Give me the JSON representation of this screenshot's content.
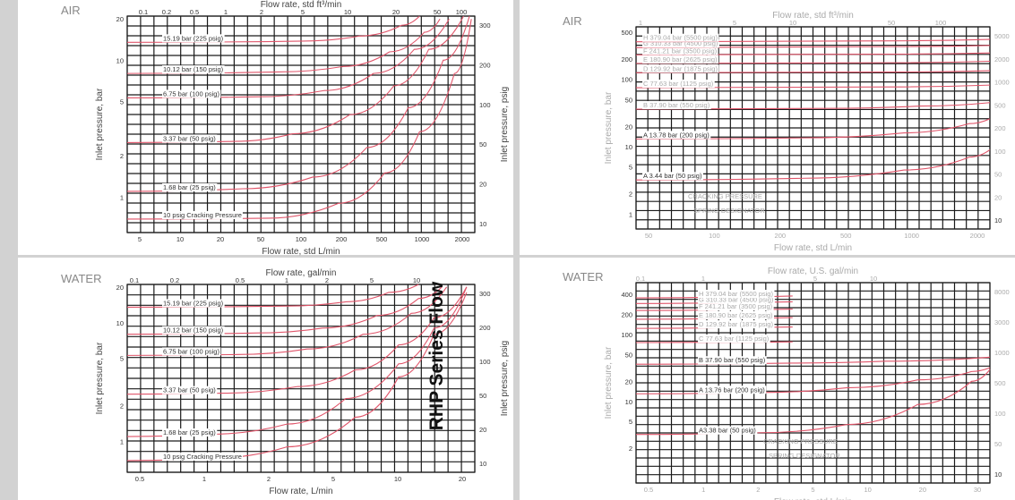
{
  "title": "RHP Series Flow",
  "chart_data": [
    {
      "type": "line",
      "corner_label": "AIR",
      "top_axis_label": "Flow rate, std ft³/min",
      "xlabel": "Flow rate, std L/min",
      "ylabel": "Inlet pressure, bar",
      "right_axis_label": "Inlet pressure, psig",
      "xlim": [
        3,
        3000
      ],
      "ylim": [
        0.55,
        21
      ],
      "x_log": true,
      "y_log": true,
      "top_ticks": [
        "0.1",
        "0.2",
        "0.5",
        "1",
        "2",
        "5",
        "10",
        "20",
        "50",
        "100"
      ],
      "bottom_ticks": [
        "5",
        "10",
        "20",
        "50",
        "100",
        "200",
        "500",
        "1000",
        "2000"
      ],
      "left_ticks": [
        "1",
        "2",
        "5",
        "10",
        "20"
      ],
      "right_ticks": [
        "10",
        "20",
        "50",
        "100",
        "200",
        "300"
      ],
      "series": [
        {
          "name": "10 psig Cracking Pressure",
          "x": [
            3,
            50,
            200,
            500,
            1000,
            2000,
            2800
          ],
          "y": [
            0.69,
            0.7,
            0.9,
            1.5,
            3,
            8,
            20
          ]
        },
        {
          "name": "1.68 bar (25 psig)",
          "x": [
            3,
            30,
            120,
            350,
            800,
            1600,
            2700
          ],
          "y": [
            1.1,
            1.15,
            1.4,
            2.3,
            4.5,
            10,
            21
          ]
        },
        {
          "name": "3.37 bar (50 psig)",
          "x": [
            3,
            25,
            80,
            250,
            600,
            1200,
            2400
          ],
          "y": [
            2.5,
            2.55,
            2.9,
            4.0,
            6.5,
            12,
            21
          ]
        },
        {
          "name": "6.75 bar (100 psig)",
          "x": [
            3,
            40,
            150,
            400,
            900,
            1800
          ],
          "y": [
            5.3,
            5.4,
            6.0,
            8.0,
            12,
            20
          ]
        },
        {
          "name": "10.12 bar (150 psig)",
          "x": [
            3,
            60,
            220,
            550,
            1100,
            1500
          ],
          "y": [
            8.0,
            8.2,
            9.0,
            11.5,
            16,
            20
          ]
        },
        {
          "name": "15.19 bar (225 psig)",
          "x": [
            3,
            100,
            300,
            700,
            1000
          ],
          "y": [
            13.5,
            13.8,
            15,
            18,
            21
          ]
        }
      ]
    },
    {
      "type": "line",
      "corner_label": "WATER",
      "top_axis_label": "Flow rate, gal/min",
      "xlabel": "Flow rate, L/min",
      "ylabel": "Inlet pressure, bar",
      "right_axis_label": "Inlet pressure, psig",
      "xlim": [
        0.3,
        45
      ],
      "ylim": [
        0.55,
        21
      ],
      "x_log": true,
      "y_log": true,
      "top_ticks": [
        "0.1",
        "0.2",
        "0.5",
        "1",
        "2",
        "5",
        "10"
      ],
      "bottom_ticks": [
        "0.5",
        "1",
        "2",
        "5",
        "10",
        "20"
      ],
      "left_ticks": [
        "1",
        "2",
        "5",
        "10",
        "20"
      ],
      "right_ticks": [
        "10",
        "20",
        "50",
        "100",
        "200",
        "300"
      ],
      "series": [
        {
          "name": "10 psig Cracking Pressure",
          "x": [
            0.3,
            1,
            3,
            8,
            15,
            25,
            40
          ],
          "y": [
            0.69,
            0.72,
            0.9,
            1.6,
            3.5,
            8,
            18
          ]
        },
        {
          "name": "1.68 bar (25 psig)",
          "x": [
            0.3,
            1,
            3,
            7,
            15,
            25,
            40
          ],
          "y": [
            1.1,
            1.15,
            1.4,
            2.3,
            4.5,
            9,
            20
          ]
        },
        {
          "name": "3.37 bar (50 psig)",
          "x": [
            0.3,
            1.2,
            3.5,
            8,
            15,
            25,
            40
          ],
          "y": [
            2.5,
            2.55,
            2.9,
            4.0,
            6.5,
            11,
            20
          ]
        },
        {
          "name": "6.75 bar (100 psig)",
          "x": [
            0.3,
            1.5,
            4,
            9,
            18,
            30
          ],
          "y": [
            5.3,
            5.4,
            6.0,
            8.0,
            12,
            20
          ]
        },
        {
          "name": "10.12 bar (150 psig)",
          "x": [
            0.3,
            2,
            5,
            11,
            20,
            28
          ],
          "y": [
            8.0,
            8.2,
            9.0,
            11.5,
            16,
            20
          ]
        },
        {
          "name": "15.19 bar (225 psig)",
          "x": [
            0.3,
            3,
            7,
            13,
            20
          ],
          "y": [
            13.5,
            13.8,
            15,
            18,
            21
          ]
        }
      ]
    },
    {
      "type": "line",
      "corner_label": "AIR",
      "top_axis_label": "Flow rate, std ft³/min",
      "xlabel": "Flow rate, std L/min",
      "ylabel": "Inlet pressure, bar",
      "right_axis_label": "Inlet pressure, psig",
      "xlim": [
        28,
        4000
      ],
      "ylim": [
        0.6,
        600
      ],
      "x_log": true,
      "y_log": true,
      "top_ticks": [
        "1",
        "5",
        "10",
        "50",
        "100"
      ],
      "bottom_ticks": [
        "50",
        "100",
        "200",
        "500",
        "1000",
        "2000"
      ],
      "left_ticks": [
        "1",
        "2",
        "5",
        "10",
        "20",
        "50",
        "100",
        "200",
        "500"
      ],
      "right_ticks": [
        "10",
        "20",
        "50",
        "100",
        "200",
        "500",
        "1000",
        "2000",
        "5000"
      ],
      "series": [
        {
          "name": "A 3.44 bar (50 psig)",
          "x": [
            28,
            300,
            1200,
            3000,
            4000
          ],
          "y": [
            3.2,
            3.4,
            4.5,
            7,
            9
          ]
        },
        {
          "name": "A 13.78 bar (200 psig)",
          "x": [
            28,
            300,
            1200,
            3000,
            4000
          ],
          "y": [
            13,
            13.5,
            16,
            22,
            26
          ]
        },
        {
          "name": "B 37.90 bar (550 psig)",
          "x": [
            28,
            400,
            1500,
            4000
          ],
          "y": [
            36,
            37,
            40,
            45
          ]
        },
        {
          "name": "C 77.63 bar (1125 psig)",
          "x": [
            28,
            1000,
            4000
          ],
          "y": [
            75,
            77,
            82
          ]
        },
        {
          "name": "D 129.92 bar (1875 psig)",
          "x": [
            28,
            1000,
            4000
          ],
          "y": [
            125,
            128,
            134
          ]
        },
        {
          "name": "E 180.90 bar (2625 psig)",
          "x": [
            28,
            1000,
            4000
          ],
          "y": [
            172,
            176,
            185
          ]
        },
        {
          "name": "F 241.21 bar (3500 psig)",
          "x": [
            28,
            1000,
            4000
          ],
          "y": [
            230,
            236,
            246
          ]
        },
        {
          "name": "G 310.33 bar (4500 psig)",
          "x": [
            28,
            1000,
            4000
          ],
          "y": [
            295,
            305,
            318
          ]
        },
        {
          "name": "H 379.04 bar (5500 psig)",
          "x": [
            28,
            1000,
            4000
          ],
          "y": [
            360,
            372,
            390
          ]
        }
      ],
      "annotations": [
        "CRACKING PRESSURE",
        "SPRING DESIGNATOR"
      ]
    },
    {
      "type": "line",
      "corner_label": "WATER",
      "top_axis_label": "Flow rate, U.S. gal/min",
      "xlabel": "Flow rate, std L/min",
      "ylabel": "Inlet pressure, bar",
      "right_axis_label": "Inlet pressure, psig",
      "xlim": [
        0.4,
        38
      ],
      "ylim": [
        0.6,
        600
      ],
      "x_log": true,
      "y_log": true,
      "top_ticks": [
        "0.1",
        "1",
        "5",
        "10"
      ],
      "bottom_ticks": [
        "0.5",
        "1",
        "2",
        "5",
        "10",
        "20",
        "30"
      ],
      "left_ticks": [
        "2",
        "5",
        "10",
        "20",
        "50",
        "100",
        "200",
        "400"
      ],
      "right_ticks": [
        "10",
        "50",
        "100",
        "500",
        "1000",
        "3000",
        "8000"
      ],
      "series": [
        {
          "name": "A3.38 bar (50 psig)",
          "x": [
            0.4,
            2,
            6,
            15,
            30,
            38
          ],
          "y": [
            3.2,
            3.4,
            4.5,
            9,
            20,
            30
          ]
        },
        {
          "name": "A 13.76 bar (200 psig)",
          "x": [
            0.4,
            2,
            6,
            15,
            30,
            38
          ],
          "y": [
            13,
            13.6,
            16,
            21,
            28,
            32
          ]
        },
        {
          "name": "B 37.90 bar (550 psig)",
          "x": [
            0.4,
            3,
            10,
            38
          ],
          "y": [
            36,
            37.5,
            40,
            46
          ]
        },
        {
          "name": "C 77.63 bar (1125 psig)",
          "x": [
            0.4,
            1.5,
            3
          ],
          "y": [
            76,
            77,
            78
          ]
        },
        {
          "name": "D 129.92 bar (1875 psig)",
          "x": [
            0.4,
            1.5,
            3
          ],
          "y": [
            124,
            128,
            130
          ]
        },
        {
          "name": "E 180.90 bar (2625 psig)",
          "x": [
            0.4,
            1.5,
            3
          ],
          "y": [
            170,
            176,
            180
          ]
        },
        {
          "name": "F 241.21 bar (3500 psig)",
          "x": [
            0.4,
            1.5,
            3
          ],
          "y": [
            230,
            236,
            241
          ]
        },
        {
          "name": "G 310.33 bar (4500 psig)",
          "x": [
            0.4,
            1.5,
            3
          ],
          "y": [
            292,
            303,
            310
          ]
        },
        {
          "name": "H 379.04 bar (5500 psig)",
          "x": [
            0.4,
            1.5,
            3
          ],
          "y": [
            355,
            368,
            379
          ]
        }
      ],
      "annotations": [
        "CRACKING PRESSURE",
        "SPRING DESIGNATOR"
      ]
    }
  ]
}
